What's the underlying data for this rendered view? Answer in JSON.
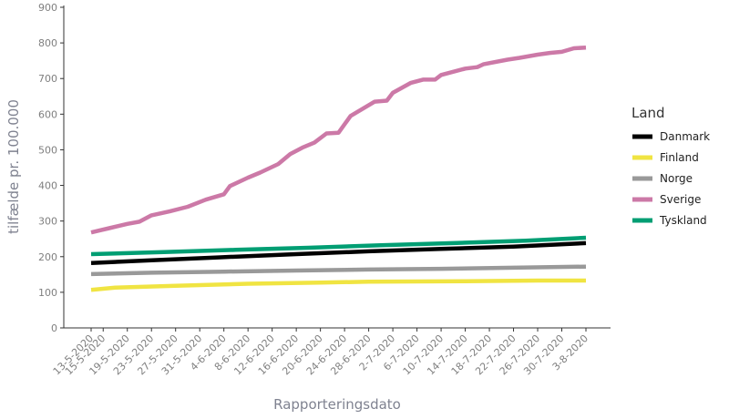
{
  "chart_data": {
    "type": "line",
    "xlabel": "Rapporteringsdato",
    "ylabel": "tilfælde pr. 100.000",
    "ylim": [
      0,
      900
    ],
    "yticks": [
      0,
      100,
      200,
      300,
      400,
      500,
      600,
      700,
      800,
      900
    ],
    "grid": false,
    "legend_title": "Land",
    "legend_position": "right",
    "x_tick_labels": [
      "13-5-2020",
      "15-5-2020",
      "19-5-2020",
      "23-5-2020",
      "27-5-2020",
      "31-5-2020",
      "4-6-2020",
      "8-6-2020",
      "12-6-2020",
      "16-6-2020",
      "20-6-2020",
      "24-6-2020",
      "28-6-2020",
      "2-7-2020",
      "6-7-2020",
      "10-7-2020",
      "14-7-2020",
      "18-7-2020",
      "22-7-2020",
      "26-7-2020",
      "30-7-2020",
      "3-8-2020"
    ],
    "x_range": [
      "2020-05-13",
      "2020-08-03"
    ],
    "series": [
      {
        "name": "Danmark",
        "color": "#000000",
        "points": [
          [
            "2020-05-13",
            182
          ],
          [
            "2020-05-23",
            190
          ],
          [
            "2020-06-03",
            198
          ],
          [
            "2020-06-16",
            207
          ],
          [
            "2020-06-28",
            215
          ],
          [
            "2020-07-10",
            222
          ],
          [
            "2020-07-22",
            228
          ],
          [
            "2020-08-03",
            238
          ]
        ]
      },
      {
        "name": "Finland",
        "color": "#f0e442",
        "points": [
          [
            "2020-05-13",
            107
          ],
          [
            "2020-05-17",
            113
          ],
          [
            "2020-05-27",
            118
          ],
          [
            "2020-06-08",
            124
          ],
          [
            "2020-06-20",
            127
          ],
          [
            "2020-06-28",
            130
          ],
          [
            "2020-07-14",
            131
          ],
          [
            "2020-07-26",
            133
          ],
          [
            "2020-08-03",
            133
          ]
        ]
      },
      {
        "name": "Norge",
        "color": "#999999",
        "points": [
          [
            "2020-05-13",
            151
          ],
          [
            "2020-05-23",
            155
          ],
          [
            "2020-06-04",
            158
          ],
          [
            "2020-06-16",
            161
          ],
          [
            "2020-06-28",
            164
          ],
          [
            "2020-07-10",
            166
          ],
          [
            "2020-07-22",
            169
          ],
          [
            "2020-08-03",
            172
          ]
        ]
      },
      {
        "name": "Sverige",
        "color": "#cc79a7",
        "points": [
          [
            "2020-05-13",
            268
          ],
          [
            "2020-05-16",
            280
          ],
          [
            "2020-05-19",
            292
          ],
          [
            "2020-05-21",
            298
          ],
          [
            "2020-05-23",
            316
          ],
          [
            "2020-05-26",
            327
          ],
          [
            "2020-05-29",
            340
          ],
          [
            "2020-06-01",
            360
          ],
          [
            "2020-06-04",
            375
          ],
          [
            "2020-06-05",
            398
          ],
          [
            "2020-06-08",
            422
          ],
          [
            "2020-06-10",
            436
          ],
          [
            "2020-06-13",
            460
          ],
          [
            "2020-06-15",
            488
          ],
          [
            "2020-06-17",
            506
          ],
          [
            "2020-06-19",
            520
          ],
          [
            "2020-06-21",
            546
          ],
          [
            "2020-06-23",
            548
          ],
          [
            "2020-06-25",
            595
          ],
          [
            "2020-06-29",
            635
          ],
          [
            "2020-07-01",
            638
          ],
          [
            "2020-07-02",
            660
          ],
          [
            "2020-07-05",
            688
          ],
          [
            "2020-07-07",
            697
          ],
          [
            "2020-07-09",
            697
          ],
          [
            "2020-07-10",
            710
          ],
          [
            "2020-07-14",
            728
          ],
          [
            "2020-07-16",
            732
          ],
          [
            "2020-07-17",
            740
          ],
          [
            "2020-07-21",
            753
          ],
          [
            "2020-07-23",
            758
          ],
          [
            "2020-07-26",
            767
          ],
          [
            "2020-07-28",
            772
          ],
          [
            "2020-07-30",
            775
          ],
          [
            "2020-08-01",
            785
          ],
          [
            "2020-08-03",
            787
          ]
        ]
      },
      {
        "name": "Tyskland",
        "color": "#009e73",
        "points": [
          [
            "2020-05-13",
            207
          ],
          [
            "2020-05-25",
            213
          ],
          [
            "2020-06-06",
            219
          ],
          [
            "2020-06-18",
            225
          ],
          [
            "2020-06-30",
            232
          ],
          [
            "2020-07-12",
            238
          ],
          [
            "2020-07-24",
            245
          ],
          [
            "2020-08-03",
            253
          ]
        ]
      }
    ]
  }
}
